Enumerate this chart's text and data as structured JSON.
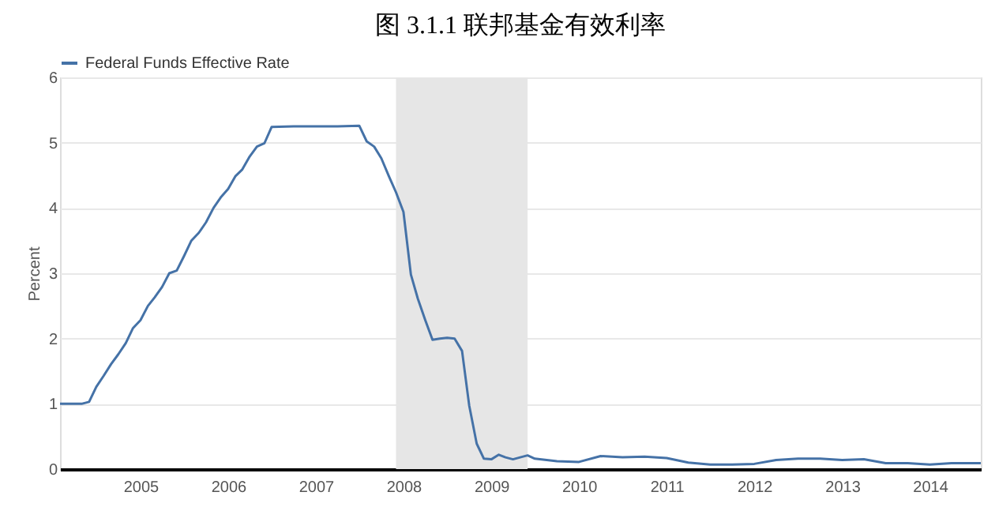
{
  "chart_data": {
    "type": "line",
    "title": "图 3.1.1  联邦基金有效利率",
    "ylabel": "Percent",
    "x": [
      "2004-02",
      "2004-03",
      "2004-04",
      "2004-05",
      "2004-06",
      "2004-07",
      "2004-08",
      "2004-09",
      "2004-10",
      "2004-11",
      "2004-12",
      "2005-01",
      "2005-02",
      "2005-03",
      "2005-04",
      "2005-05",
      "2005-06",
      "2005-07",
      "2005-08",
      "2005-09",
      "2005-10",
      "2005-11",
      "2005-12",
      "2006-01",
      "2006-02",
      "2006-03",
      "2006-04",
      "2006-05",
      "2006-06",
      "2006-07",
      "2006-10",
      "2007-01",
      "2007-04",
      "2007-07",
      "2007-08",
      "2007-09",
      "2007-10",
      "2007-11",
      "2007-12",
      "2008-01",
      "2008-02",
      "2008-03",
      "2008-04",
      "2008-05",
      "2008-06",
      "2008-07",
      "2008-08",
      "2008-09",
      "2008-10",
      "2008-11",
      "2008-12",
      "2009-01",
      "2009-02",
      "2009-03",
      "2009-04",
      "2009-05",
      "2009-06",
      "2009-07",
      "2009-10",
      "2010-01",
      "2010-04",
      "2010-07",
      "2010-10",
      "2011-01",
      "2011-04",
      "2011-07",
      "2011-10",
      "2012-01",
      "2012-04",
      "2012-07",
      "2012-10",
      "2013-01",
      "2013-04",
      "2013-07",
      "2013-10",
      "2014-01",
      "2014-04",
      "2014-08"
    ],
    "series": [
      {
        "name": "Federal Funds Effective Rate",
        "color": "#4572a7",
        "values": [
          1.0,
          1.0,
          1.0,
          1.0,
          1.03,
          1.26,
          1.43,
          1.61,
          1.76,
          1.93,
          2.16,
          2.28,
          2.5,
          2.63,
          2.79,
          3.0,
          3.04,
          3.26,
          3.5,
          3.62,
          3.78,
          4.0,
          4.16,
          4.29,
          4.49,
          4.59,
          4.79,
          4.94,
          4.99,
          5.24,
          5.25,
          5.25,
          5.25,
          5.26,
          5.02,
          4.94,
          4.76,
          4.49,
          4.24,
          3.94,
          2.98,
          2.61,
          2.28,
          1.98,
          2.0,
          2.01,
          2.0,
          1.81,
          0.97,
          0.39,
          0.16,
          0.15,
          0.22,
          0.18,
          0.15,
          0.18,
          0.21,
          0.16,
          0.12,
          0.11,
          0.2,
          0.18,
          0.19,
          0.17,
          0.1,
          0.07,
          0.07,
          0.08,
          0.14,
          0.16,
          0.16,
          0.14,
          0.15,
          0.09,
          0.09,
          0.07,
          0.09,
          0.09
        ]
      }
    ],
    "xticks": [
      "2005",
      "2006",
      "2007",
      "2008",
      "2009",
      "2010",
      "2011",
      "2012",
      "2013",
      "2014"
    ],
    "xlim": [
      "2004-02",
      "2014-08"
    ],
    "ylim": [
      0,
      6
    ],
    "yticks": [
      0,
      1,
      2,
      3,
      4,
      5,
      6
    ],
    "bands": [
      {
        "axis": "x",
        "from": "2007-12",
        "to": "2009-06",
        "color": "#e6e6e6"
      }
    ],
    "grid": "y",
    "legend": "top left",
    "marker": "none",
    "line_style": "solid"
  }
}
